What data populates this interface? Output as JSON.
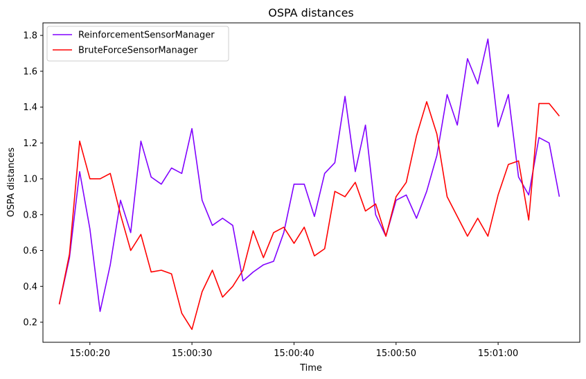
{
  "chart_data": {
    "type": "line",
    "title": "OSPA distances",
    "xlabel": "Time",
    "ylabel": "OSPA distances",
    "x_unit": "time",
    "x_range": [
      "15:00:15.4",
      "15:01:08.0"
    ],
    "ylim": [
      0.088,
      1.87
    ],
    "grid": false,
    "legend_position": "top-left",
    "x_ticks": [
      "15:00:20",
      "15:00:30",
      "15:00:40",
      "15:00:50",
      "15:01:00"
    ],
    "y_ticks": [
      "0.2",
      "0.4",
      "0.6",
      "0.8",
      "1.0",
      "1.2",
      "1.4",
      "1.6",
      "1.8"
    ],
    "x": [
      "15:00:17",
      "15:00:18",
      "15:00:19",
      "15:00:20",
      "15:00:21",
      "15:00:22",
      "15:00:23",
      "15:00:24",
      "15:00:25",
      "15:00:26",
      "15:00:27",
      "15:00:28",
      "15:00:29",
      "15:00:30",
      "15:00:31",
      "15:00:32",
      "15:00:33",
      "15:00:34",
      "15:00:35",
      "15:00:36",
      "15:00:37",
      "15:00:38",
      "15:00:39",
      "15:00:40",
      "15:00:41",
      "15:00:42",
      "15:00:43",
      "15:00:44",
      "15:00:45",
      "15:00:46",
      "15:00:47",
      "15:00:48",
      "15:00:49",
      "15:00:50",
      "15:00:51",
      "15:00:52",
      "15:00:53",
      "15:00:54",
      "15:00:55",
      "15:00:56",
      "15:00:57",
      "15:00:58",
      "15:00:59",
      "15:01:00",
      "15:01:01",
      "15:01:02",
      "15:01:03",
      "15:01:04",
      "15:01:05",
      "15:01:06"
    ],
    "series": [
      {
        "name": "ReinforcementSensorManager",
        "color": "#8000ff",
        "values": [
          0.3,
          0.56,
          1.04,
          0.72,
          0.26,
          0.52,
          0.88,
          0.7,
          1.21,
          1.01,
          0.97,
          1.06,
          1.03,
          1.28,
          0.88,
          0.74,
          0.78,
          0.74,
          0.43,
          0.48,
          0.52,
          0.54,
          0.7,
          0.97,
          0.97,
          0.79,
          1.03,
          1.09,
          1.46,
          1.04,
          1.3,
          0.8,
          0.68,
          0.88,
          0.91,
          0.78,
          0.93,
          1.13,
          1.47,
          1.3,
          1.67,
          1.53,
          1.78,
          1.29,
          1.47,
          1.01,
          0.91,
          1.23,
          1.2,
          0.9
        ]
      },
      {
        "name": "BruteForceSensorManager",
        "color": "#ff0000",
        "values": [
          0.3,
          0.58,
          1.21,
          1.0,
          1.0,
          1.03,
          0.8,
          0.6,
          0.69,
          0.48,
          0.49,
          0.47,
          0.25,
          0.16,
          0.37,
          0.49,
          0.34,
          0.4,
          0.49,
          0.71,
          0.56,
          0.7,
          0.73,
          0.64,
          0.73,
          0.57,
          0.61,
          0.93,
          0.9,
          0.98,
          0.82,
          0.86,
          0.68,
          0.9,
          0.98,
          1.24,
          1.43,
          1.25,
          0.9,
          0.79,
          0.68,
          0.78,
          0.68,
          0.91,
          1.08,
          1.1,
          0.77,
          1.42,
          1.42,
          1.35
        ]
      }
    ]
  }
}
